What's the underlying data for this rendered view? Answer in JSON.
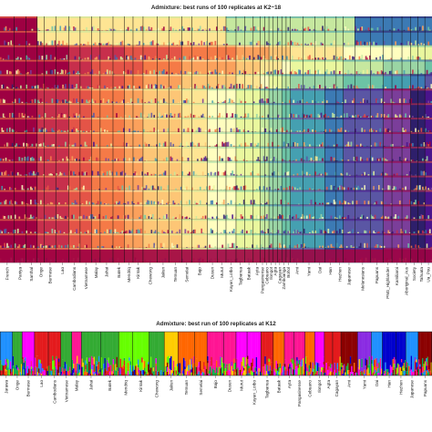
{
  "chart_data": [
    {
      "type": "bar",
      "subtype": "stacked-admixture",
      "title": "Admixture: best runs of 100 replicates at K2~18",
      "xlabel": "",
      "ylabel": "",
      "rows_K": [
        2,
        3,
        4,
        5,
        6,
        7,
        8,
        9,
        10,
        11,
        12,
        13,
        14,
        15,
        16,
        17,
        18
      ],
      "categories": [
        "French",
        "Paniya",
        "Santhal",
        "Onge",
        "Burmese",
        "Lao",
        "Cambodians",
        "Vietnamese",
        "Malay",
        "Jahai",
        "Batek",
        "Mendriq",
        "Kintak",
        "Chewong",
        "Jakun",
        "Temuan",
        "Semelai",
        "Bajo",
        "Dusun",
        "Murut",
        "Kayan_Lotbo",
        "Tagbanua",
        "Bataak",
        "Ayta",
        "Pangasinense",
        "Cebuano",
        "Ilongot",
        "Agta",
        "Cagayan",
        "Zamboanga",
        "Bohol",
        "Ami",
        "Yami",
        "Dai",
        "Han",
        "Hezhen",
        "Japanese",
        "Melanesians",
        "Papuans",
        "PNG_Highlander",
        "Kamiliaroi",
        "Aboriginal_Aus",
        "Society",
        "Tahuata",
        "Ua_Pou"
      ],
      "series": []
    },
    {
      "type": "bar",
      "subtype": "stacked-admixture",
      "title": "Admixture: best run of 100 replicates at K12",
      "K": 12,
      "categories": [
        "Jarawa",
        "Onge",
        "Burmese",
        "Lao",
        "Cambodians",
        "Vietnamese",
        "Malay",
        "Jahai",
        "Batek",
        "Mendriq",
        "Kintak",
        "Chewong",
        "Jakun",
        "Temuan",
        "Semelai",
        "Bajo",
        "Dusun",
        "Murut",
        "Kayan_Lotbo",
        "Tagbanua",
        "Bataak",
        "Ayta",
        "Pangasinense",
        "Cebuano",
        "Ilongot",
        "Agta",
        "Cagayan",
        "Ami",
        "Yami",
        "Dai",
        "Han",
        "Hezhen",
        "Japanese",
        "Papuans"
      ],
      "series": []
    }
  ],
  "colors": {
    "palette18": [
      "#9e0142",
      "#c72f4c",
      "#e45447",
      "#f57a47",
      "#fba15c",
      "#fdc676",
      "#fee593",
      "#fffebf",
      "#eaf79e",
      "#c6e89f",
      "#9ad5a4",
      "#6cc3a5",
      "#45a0b1",
      "#3c7ab4",
      "#5a56a4",
      "#7b3e9a",
      "#2e1f6b",
      "#4a148c"
    ],
    "palette12": [
      "#e41a1c",
      "#ff6600",
      "#ffcc00",
      "#33aa33",
      "#00b050",
      "#66ff00",
      "#ff1493",
      "#ff00ff",
      "#1e90ff",
      "#0000cd",
      "#8b0000",
      "#8a2be2"
    ]
  }
}
